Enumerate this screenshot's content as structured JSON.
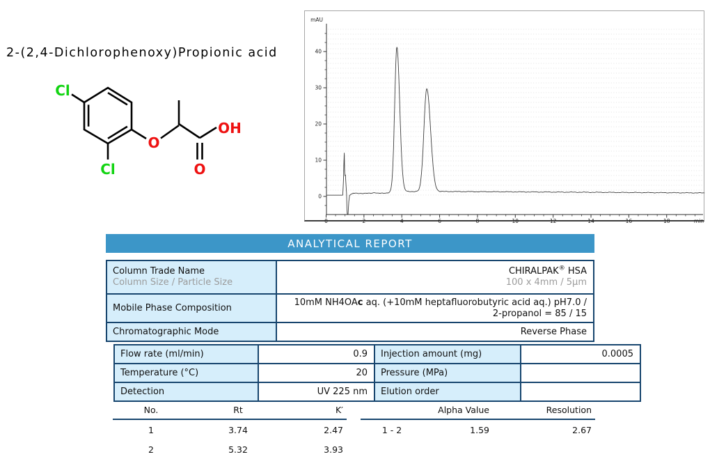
{
  "compound": {
    "title": "2-(2,4-Dichlorophenoxy)Propionic acid"
  },
  "structure": {
    "atoms": {
      "cl_top": "Cl",
      "cl_bottom": "Cl",
      "ether_o": "O",
      "hydroxyl": "OH",
      "carbonyl_o": "O"
    },
    "colors": {
      "chlorine": "#12d412",
      "oxygen": "#ee1111",
      "bond": "#000000"
    }
  },
  "chart_data": {
    "type": "line",
    "title": "",
    "y_unit": "mAU",
    "x_unit": "min",
    "x_range": [
      0,
      20
    ],
    "y_axis_range": [
      -5.4,
      47.5
    ],
    "x_ticks": [
      0,
      2,
      4,
      6,
      8,
      10,
      12,
      14,
      16,
      18
    ],
    "y_ticks": [
      0,
      10,
      20,
      30,
      40
    ],
    "grid": "dotted",
    "legend": "none",
    "baseline_mAU": 1.35,
    "injection_spike": {
      "time_min": 1.0,
      "top_mAU": 13.3,
      "dip_mAU": -5.4
    },
    "peaks": [
      {
        "no": 1,
        "rt_min": 3.74,
        "apex_mAU": 41.3
      },
      {
        "no": 2,
        "rt_min": 5.32,
        "apex_mAU": 29.8
      }
    ]
  },
  "report": {
    "header": "ANALYTICAL REPORT",
    "table1": {
      "row1": {
        "label": "Column Trade Name",
        "label2": "Column Size / Particle Size",
        "value_brand": "CHIRALPAK",
        "value_reg": "®",
        "value_rest": " HSA",
        "value2": "100 x 4mm / 5µm"
      },
      "row2": {
        "label": "Mobile Phase Composition",
        "value_pre": "10mM NH4OA",
        "value_bold": "c",
        "value_post": " aq. (+10mM heptafluorobutyric acid aq.) pH7.0 / 2-propanol = 85 / 15"
      },
      "row3": {
        "label": "Chromatographic Mode",
        "value": "Reverse Phase"
      }
    },
    "conditions": {
      "rows": [
        {
          "label": "Flow rate (ml/min)",
          "value": "0.9",
          "label2": "Injection amount (mg)",
          "value2": "0.0005"
        },
        {
          "label": "Temperature (°C)",
          "value": "20",
          "label2": "Pressure (MPa)",
          "value2": ""
        },
        {
          "label": "Detection",
          "value": "UV 225 nm",
          "label2": "Elution order",
          "value2": ""
        }
      ]
    },
    "results_left": {
      "headers": [
        "No.",
        "Rt",
        "K′"
      ],
      "rows": [
        [
          "1",
          "3.74",
          "2.47"
        ],
        [
          "2",
          "5.32",
          "3.93"
        ]
      ]
    },
    "results_right": {
      "headers": [
        "",
        "Alpha Value",
        "Resolution"
      ],
      "rows": [
        [
          "1 - 2",
          "1.59",
          "2.67"
        ]
      ]
    }
  }
}
